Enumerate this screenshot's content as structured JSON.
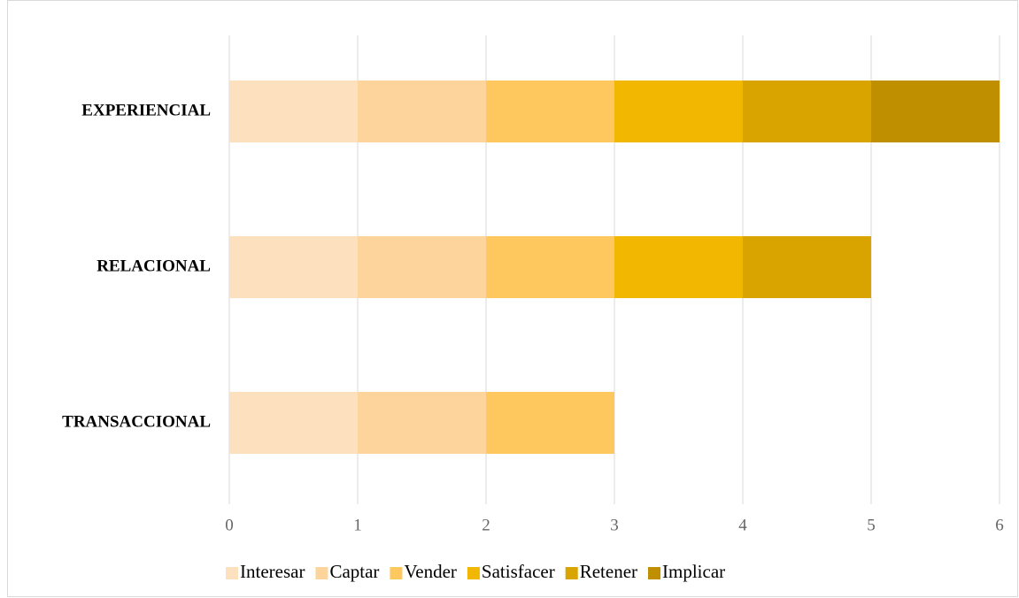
{
  "chart_data": {
    "type": "stacked_bar_horizontal",
    "categories": [
      "EXPERIENCIAL",
      "RELACIONAL",
      "TRANSACCIONAL"
    ],
    "series": [
      {
        "name": "Interesar",
        "color": "#fde1bf",
        "values": [
          1,
          1,
          1
        ]
      },
      {
        "name": "Captar",
        "color": "#fdd59c",
        "values": [
          1,
          1,
          1
        ]
      },
      {
        "name": "Vender",
        "color": "#fec85e",
        "values": [
          1,
          1,
          1
        ]
      },
      {
        "name": "Satisfacer",
        "color": "#f2b700",
        "values": [
          1,
          1,
          0
        ]
      },
      {
        "name": "Retener",
        "color": "#d9a300",
        "values": [
          1,
          1,
          0
        ]
      },
      {
        "name": "Implicar",
        "color": "#bf8f00",
        "values": [
          1,
          0,
          0
        ]
      }
    ],
    "xlim": [
      0,
      6
    ],
    "xticks": [
      0,
      1,
      2,
      3,
      4,
      5,
      6
    ],
    "grid": true,
    "legend": "bottom"
  }
}
